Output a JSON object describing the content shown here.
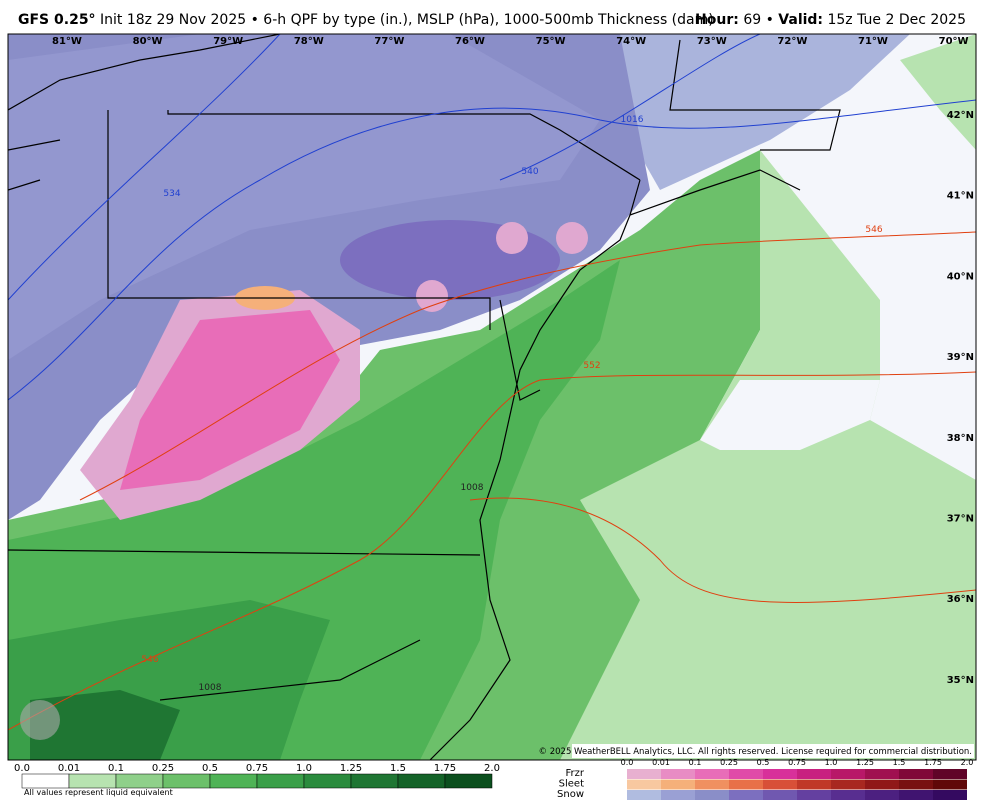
{
  "header": {
    "model": "GFS 0.25°",
    "description": "Init 18z 29 Nov 2025 • 6-h QPF by type (in.), MSLP (hPa), 1000-500mb Thickness (dam)",
    "hour_label": "Hour:",
    "hour": "69 •",
    "valid_label": "Valid:",
    "valid": "15z Tue 2 Dec 2025"
  },
  "map": {
    "longitudes": [
      "81°W",
      "80°W",
      "79°W",
      "78°W",
      "77°W",
      "76°W",
      "75°W",
      "74°W",
      "73°W",
      "72°W",
      "71°W",
      "70°W"
    ],
    "latitudes": [
      "42°N",
      "41°N",
      "40°N",
      "39°N",
      "38°N",
      "37°N",
      "36°N",
      "35°N"
    ],
    "contour_labels": [
      "1016",
      "540",
      "546",
      "552",
      "1008",
      "546",
      "1008",
      "534"
    ],
    "copyright": "© 2025 WeatherBELL Analytics, LLC. All rights reserved. License required for commercial distribution."
  },
  "legend": {
    "rain_ticks": [
      "0.0",
      "0.01",
      "0.1",
      "0.25",
      "0.5",
      "0.75",
      "1.0",
      "1.25",
      "1.5",
      "1.75",
      "2.0"
    ],
    "note": "All values represent liquid equivalent",
    "types": [
      "Frzr",
      "Sleet",
      "Snow"
    ],
    "type_ticks": [
      "0.0",
      "0.01",
      "0.1",
      "0.25",
      "0.5",
      "0.75",
      "1.0",
      "1.25",
      "1.5",
      "1.75",
      "2.0"
    ]
  }
}
